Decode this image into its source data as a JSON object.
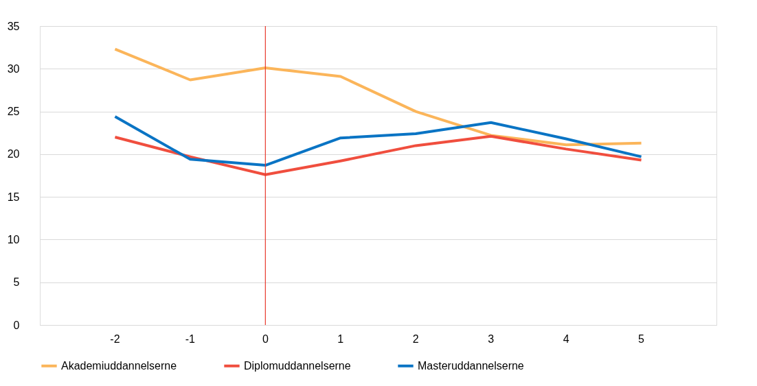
{
  "chart_data": {
    "type": "line",
    "categories": [
      "-2",
      "-1",
      "0",
      "1",
      "2",
      "3",
      "4",
      "5"
    ],
    "series": [
      {
        "name": "Akademiuddannelserne",
        "color": "#fbb55a",
        "values": [
          32.3,
          28.7,
          30.1,
          29.1,
          25.0,
          22.2,
          21.1,
          21.3
        ]
      },
      {
        "name": "Diplomuddannelserne",
        "color": "#f04e3e",
        "values": [
          22.0,
          19.7,
          17.6,
          19.2,
          21.0,
          22.1,
          20.6,
          19.3
        ]
      },
      {
        "name": "Masteruddannelserne",
        "color": "#0a74c4",
        "values": [
          24.4,
          19.4,
          18.7,
          21.9,
          22.4,
          23.7,
          21.8,
          19.7
        ]
      }
    ],
    "ylim": [
      0,
      35
    ],
    "yticks": [
      0,
      5,
      10,
      15,
      20,
      25,
      30,
      35
    ],
    "grid": "y",
    "legend": "bottom",
    "marker": "none",
    "line_style": "solid",
    "ref_lines": [
      {
        "axis": "x",
        "value": "0",
        "color": "#e8382d"
      }
    ]
  }
}
